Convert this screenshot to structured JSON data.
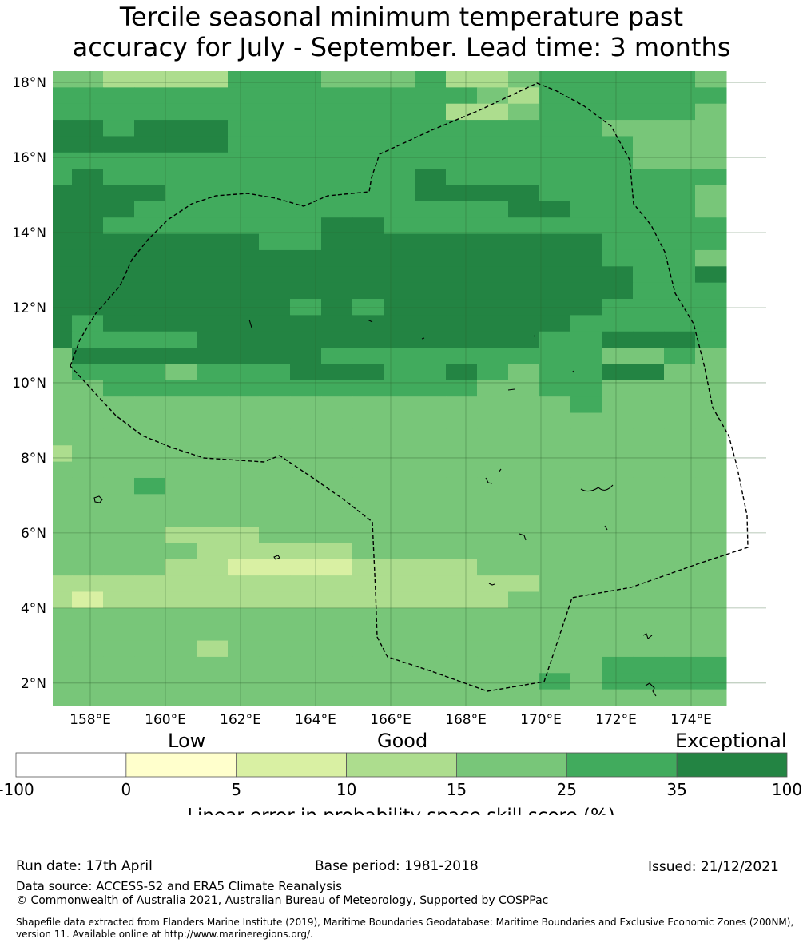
{
  "title_line1": "Tercile seasonal minimum temperature past",
  "title_line2": "accuracy for July - September. Lead time: 3 months",
  "axes": {
    "lat_labels": [
      "18°N",
      "16°N",
      "14°N",
      "12°N",
      "10°N",
      "8°N",
      "6°N",
      "4°N",
      "2°N"
    ],
    "lat_values": [
      18,
      16,
      14,
      12,
      10,
      8,
      6,
      4,
      2
    ],
    "lon_labels": [
      "158°E",
      "160°E",
      "162°E",
      "164°E",
      "166°E",
      "168°E",
      "170°E",
      "172°E",
      "174°E"
    ],
    "lon_values": [
      158,
      160,
      162,
      164,
      166,
      168,
      170,
      172,
      174
    ],
    "lon_range": [
      157,
      176
    ],
    "lat_range": [
      1.4,
      18.3
    ],
    "grid": true
  },
  "legend": {
    "categories": [
      "Low",
      "Good",
      "Exceptional"
    ],
    "ticks": [
      "-100",
      "0",
      "5",
      "10",
      "15",
      "25",
      "35",
      "100"
    ],
    "colors": [
      "#ffffff",
      "#ffffcc",
      "#d9f0a3",
      "#addd8e",
      "#78c679",
      "#41ab5d",
      "#238443"
    ],
    "xlabel": "Linear error in probability space skill score (%)"
  },
  "map_colors": {
    "0": "#ffffcc",
    "1": "#d9f0a3",
    "2": "#addd8e",
    "3": "#78c679",
    "4": "#41ab5d",
    "5": "#238443"
  },
  "grid_cells": [
    "3322224443334223444443",
    "4444444444444432444444",
    "4444444444444223444443",
    "5545554444444444443333",
    "5555554444444444444333",
    "4444444444444444444333",
    "4544444444445444444444",
    "5555444444445555444443",
    "5554444444444445544443",
    "5544444445544444444444",
    "5555555445555555554444",
    "5555555555555555554443",
    "5555555555555555555445",
    "5555555555555555555444",
    "5555555545455555554444",
    "5455555555555555544444",
    "5444455555555555445554",
    "3555555554444444443343",
    "3444344455544543445533",
    "3344444444444433443333",
    "3333333333333333343333",
    "3333333333333333333333",
    "3333333333333333333333",
    "2333333333333333333333",
    "3333333333333333333333",
    "3334333333333333333333",
    "3333333333333333333333",
    "3333333333333333333333",
    "3333222333333333333333",
    "3333322222333333333333",
    "3333221111222233333333",
    "2222222222222222333333",
    "2122222222222223333333",
    "3333333333333333333333",
    "3333333333333333333333",
    "3333323333333333333333",
    "3333333333333333334444",
    "3333333333333333434444",
    "3333333333333333333333"
  ],
  "footer": {
    "run_date": "Run date: 17th April",
    "base_period": "Base period: 1981-2018",
    "issued": "Issued: 21/12/2021",
    "data_source": "Data source: ACCESS-S2 and ERA5 Climate Reanalysis",
    "copyright": "© Commonwealth of Australia 2021, Australian Bureau of Meteorology, Supported by COSPPac",
    "shapefile": "Shapefile data extracted from Flanders Marine Institute (2019), Maritime Boundaries Geodatabase: Maritime Boundaries and Exclusive Economic Zones (200NM), version 11. Available online at http://www.marineregions.org/."
  }
}
